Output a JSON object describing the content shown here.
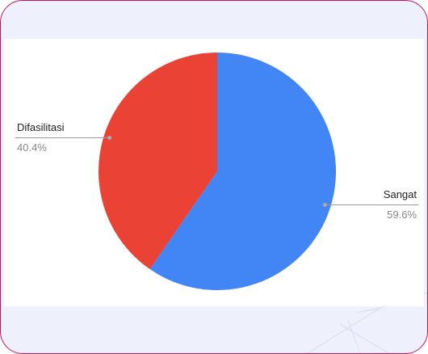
{
  "chart_data": {
    "type": "pie",
    "categories": [
      "Sangat",
      "Difasilitasi"
    ],
    "values": [
      59.6,
      40.4
    ],
    "value_labels": [
      "59.6%",
      "40.4%"
    ],
    "colors": [
      "#4285f4",
      "#ea4335"
    ]
  }
}
